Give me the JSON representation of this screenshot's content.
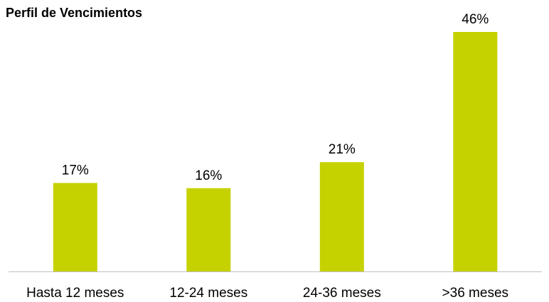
{
  "chart_data": {
    "type": "bar",
    "title": "Perfil de Vencimientos",
    "categories": [
      "Hasta 12 meses",
      "12-24 meses",
      "24-36 meses",
      ">36 meses"
    ],
    "values": [
      17,
      16,
      21,
      46
    ],
    "value_labels": [
      "17%",
      "16%",
      "21%",
      "46%"
    ],
    "unit": "%",
    "xlabel": "",
    "ylabel": "",
    "ylim": [
      0,
      46
    ],
    "grid": false,
    "legend": "none",
    "bar_color": "#c6d100",
    "axis_color": "#bfbfbf"
  }
}
